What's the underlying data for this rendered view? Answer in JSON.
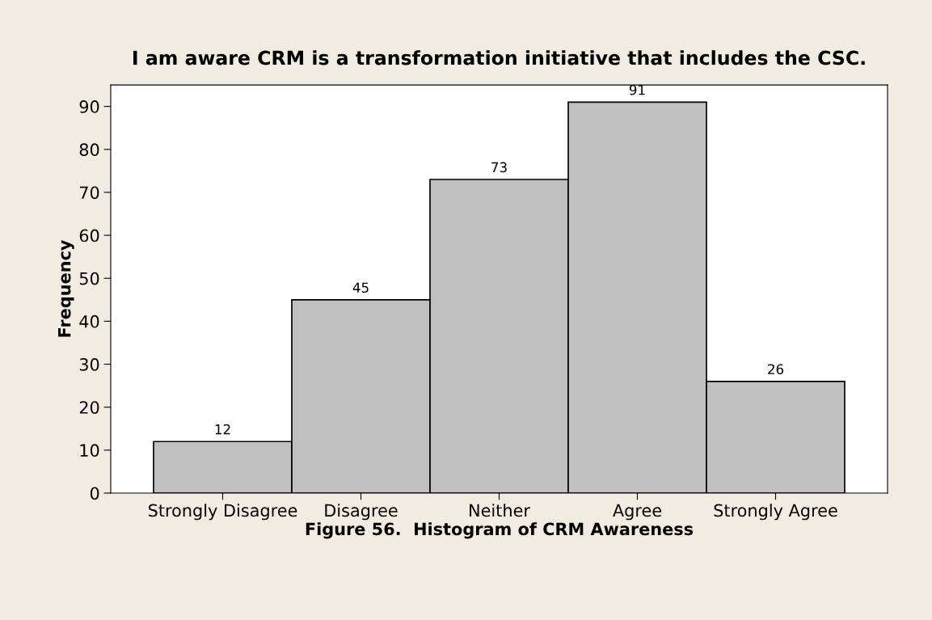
{
  "chart_data": {
    "type": "bar",
    "title": "I am aware CRM is a transformation initiative that includes the CSC.",
    "xlabel": "Figure 56.  Histogram of CRM Awareness",
    "ylabel": "Frequency",
    "categories": [
      "Strongly Disagree",
      "Disagree",
      "Neither",
      "Agree",
      "Strongly Agree"
    ],
    "values": [
      12,
      45,
      73,
      91,
      26
    ],
    "color": "#c0c0c0",
    "ylim": [
      0,
      95
    ],
    "yticks": [
      0,
      10,
      20,
      30,
      40,
      50,
      60,
      70,
      80,
      90
    ],
    "data_labels": true,
    "grid": false,
    "legend": false
  }
}
